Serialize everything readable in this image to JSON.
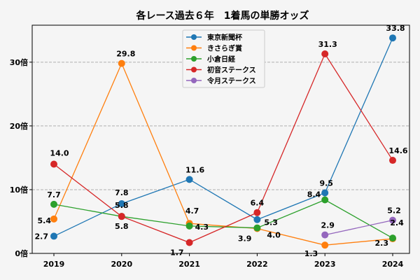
{
  "chart_data": {
    "type": "line",
    "title": "各レース過去６年　1着馬の単勝オッズ",
    "xlabel": "",
    "ylabel": "",
    "categories": [
      "2019",
      "2020",
      "2021",
      "2022",
      "2023",
      "2024"
    ],
    "y_ticks": [
      0,
      10,
      20,
      30
    ],
    "y_tick_labels": [
      "0倍",
      "10倍",
      "20倍",
      "30倍"
    ],
    "ylim": [
      0,
      35.8
    ],
    "grid": "horizontal dashed",
    "legend_position": "top-center",
    "series": [
      {
        "name": "東京新聞杯",
        "color": "#1f77b4",
        "values": [
          2.7,
          7.8,
          11.6,
          5.3,
          9.5,
          33.8
        ],
        "labels": [
          "2.7",
          "7.8",
          "11.6",
          "5.3",
          "9.5",
          "33.8"
        ]
      },
      {
        "name": "きさらぎ賞",
        "color": "#ff7f0e",
        "values": [
          5.4,
          29.8,
          4.7,
          3.9,
          1.3,
          2.3
        ],
        "labels": [
          "5.4",
          "29.8",
          "4.7",
          "3.9",
          "1.3",
          "2.3"
        ]
      },
      {
        "name": "小倉日経",
        "color": "#2ca02c",
        "values": [
          7.7,
          5.8,
          4.3,
          4.0,
          8.4,
          2.4
        ],
        "labels": [
          "7.7",
          "5.8",
          "4.3",
          "4.0",
          "8.4",
          "2.4"
        ]
      },
      {
        "name": "初音ステークス",
        "color": "#d62728",
        "values": [
          14.0,
          5.8,
          1.7,
          6.4,
          31.3,
          14.6
        ],
        "labels": [
          "14.0",
          "5.8",
          "1.7",
          "6.4",
          "31.3",
          "14.6"
        ]
      },
      {
        "name": "令月ステークス",
        "color": "#9467bd",
        "values": [
          null,
          null,
          null,
          null,
          2.9,
          5.2
        ],
        "labels": [
          null,
          null,
          null,
          null,
          "2.9",
          "5.2"
        ]
      }
    ]
  }
}
